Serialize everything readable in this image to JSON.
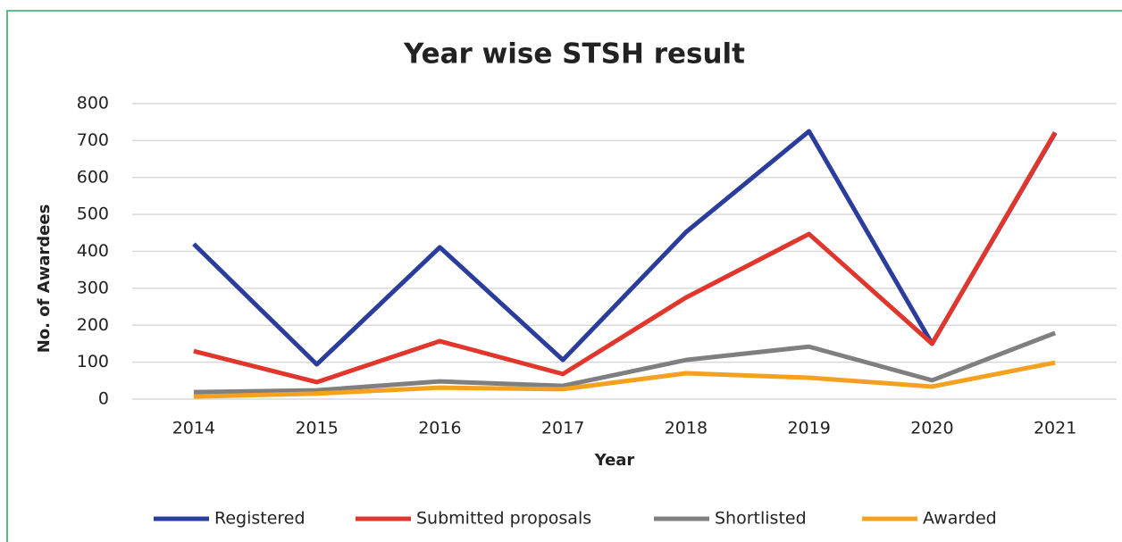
{
  "chart_data": {
    "type": "line",
    "title": "Year wise STSH result",
    "x_label": "Year",
    "y_label": "No. of Awardees",
    "categories": [
      "2014",
      "2015",
      "2016",
      "2017",
      "2018",
      "2019",
      "2020",
      "2021"
    ],
    "series": [
      {
        "name": "Registered",
        "color": "#2b3d9c",
        "values": [
          420,
          94,
          411,
          106,
          452,
          725,
          150,
          720
        ]
      },
      {
        "name": "Submitted proposals",
        "color": "#e0362b",
        "values": [
          130,
          46,
          157,
          68,
          275,
          447,
          150,
          722
        ]
      },
      {
        "name": "Shortlisted",
        "color": "#7f7f7f",
        "values": [
          19,
          24,
          48,
          36,
          106,
          142,
          51,
          179
        ]
      },
      {
        "name": "Awarded",
        "color": "#f5a11f",
        "values": [
          7,
          15,
          31,
          27,
          70,
          58,
          34,
          99
        ]
      }
    ],
    "ylim": [
      0,
      800
    ],
    "yticks": [
      0,
      100,
      200,
      300,
      400,
      500,
      600,
      700,
      800
    ],
    "grid": true,
    "legend": "bottom"
  }
}
